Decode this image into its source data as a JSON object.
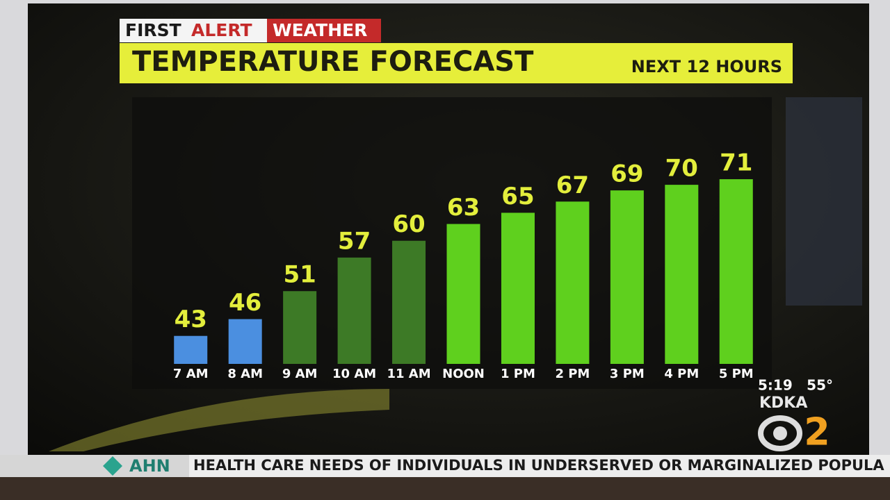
{
  "header": {
    "brand_first": "FIRST",
    "brand_alert": "ALERT",
    "brand_weather": "WEATHER",
    "title": "TEMPERATURE FORECAST",
    "subtitle": "NEXT 12 HOURS"
  },
  "chart_data": {
    "type": "bar",
    "categories": [
      "7 AM",
      "8 AM",
      "9 AM",
      "10 AM",
      "11 AM",
      "NOON",
      "1 PM",
      "2 PM",
      "3 PM",
      "4 PM",
      "5 PM"
    ],
    "values": [
      43,
      46,
      51,
      57,
      60,
      63,
      65,
      67,
      69,
      70,
      71
    ],
    "colors": [
      "#4b8fe0",
      "#4b8fe0",
      "#3d7a26",
      "#3d7a26",
      "#3d7a26",
      "#5fd01e",
      "#5fd01e",
      "#5fd01e",
      "#5fd01e",
      "#5fd01e",
      "#5fd01e"
    ],
    "label_color": "#e3ee3c",
    "ylim": [
      38,
      72
    ]
  },
  "station": {
    "time": "5:19",
    "temperature": "55°",
    "call_sign": "KDKA",
    "channel": "2"
  },
  "ticker": {
    "sponsor": "AHN",
    "text": "HEALTH CARE NEEDS OF INDIVIDUALS IN UNDERSERVED OR MARGINALIZED POPULA"
  }
}
